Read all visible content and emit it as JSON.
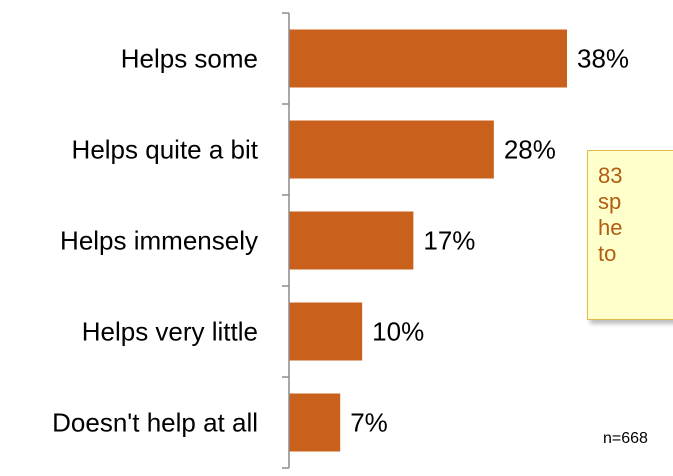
{
  "chart_data": {
    "type": "bar",
    "orientation": "horizontal",
    "categories": [
      "Helps some",
      "Helps quite a bit",
      "Helps immensely",
      "Helps very little",
      "Doesn't help at all"
    ],
    "values": [
      38,
      28,
      17,
      10,
      7
    ],
    "value_labels": [
      "38%",
      "28%",
      "17%",
      "10%",
      "7%"
    ],
    "bar_color": "#c9601b",
    "title": "",
    "xlabel": "",
    "ylabel": "",
    "xlim": [
      0,
      40
    ],
    "grid": false,
    "legend": "none"
  },
  "callout": {
    "lines": [
      "83",
      "sp",
      "he",
      "to"
    ]
  },
  "sample_note": "n=668"
}
